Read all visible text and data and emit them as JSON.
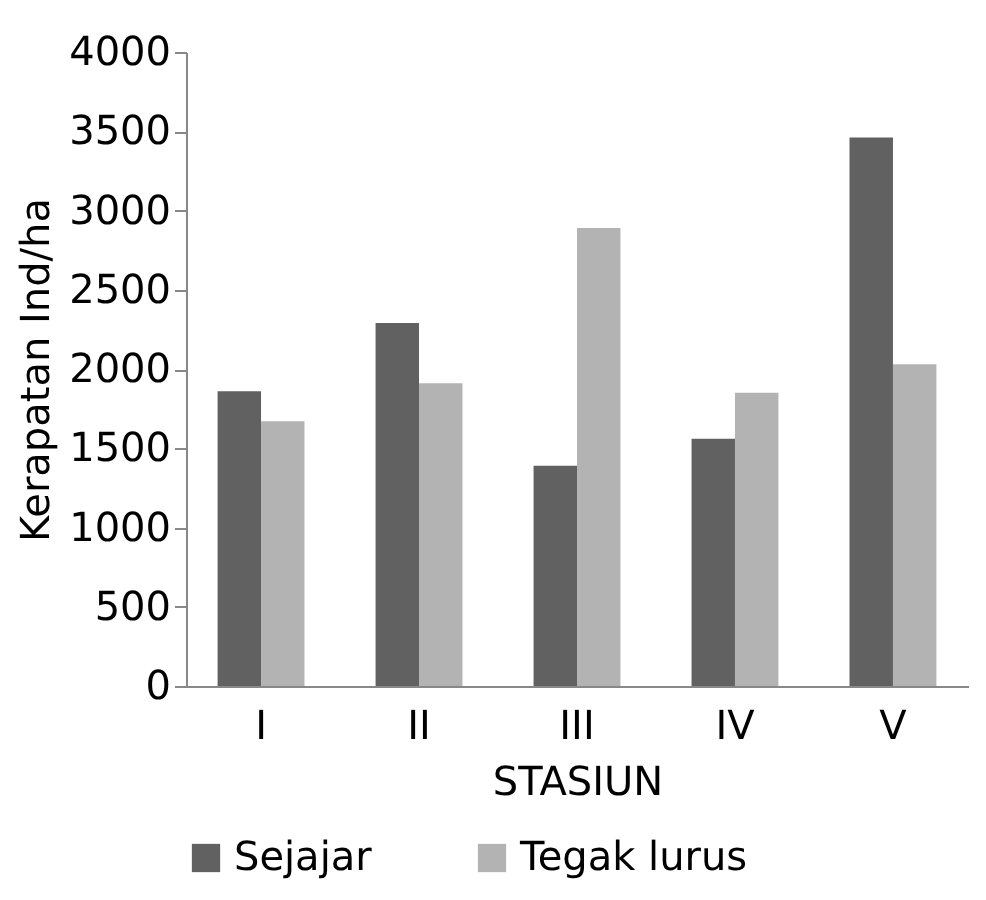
{
  "chart_data": {
    "type": "bar",
    "xlabel": "STASIUN",
    "ylabel": "Kerapatan Ind/ha",
    "categories": [
      "I",
      "II",
      "III",
      "IV",
      "V"
    ],
    "series": [
      {
        "name": "Sejajar",
        "color": "#616161",
        "values": [
          1860,
          2290,
          1390,
          1560,
          3460
        ]
      },
      {
        "name": "Tegak lurus",
        "color": "#b3b3b3",
        "values": [
          1670,
          1910,
          2890,
          1850,
          2030
        ]
      }
    ],
    "ylim": [
      0,
      4000
    ],
    "yticks": [
      0,
      500,
      1000,
      1500,
      2000,
      2500,
      3000,
      3500,
      4000
    ],
    "grid": false,
    "legend": "bottom"
  }
}
